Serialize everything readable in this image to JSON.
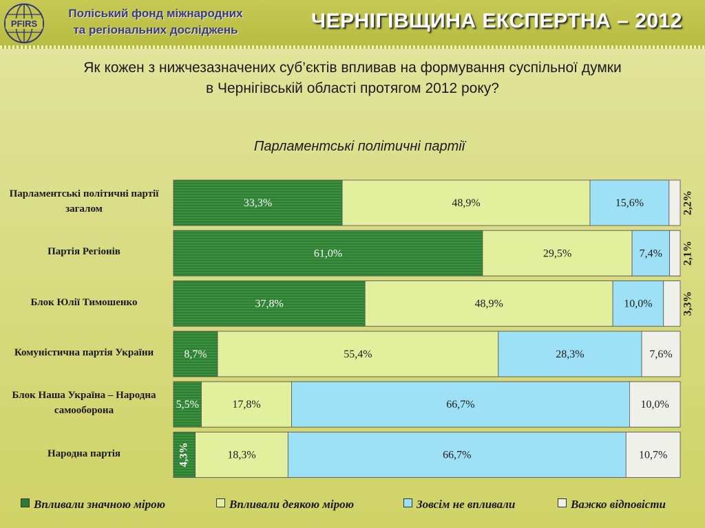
{
  "header": {
    "org_line1": "Поліський фонд міжнародних",
    "org_line2": "та регіональних досліджень",
    "logo_text": "PFIRS",
    "title": "ЧЕРНІГІВЩИНА ЕКСПЕРТНА – 2012"
  },
  "question_line1": "Як кожен з нижчезазначених суб’єктів впливав на формування суспільної думки",
  "question_line2": "в Чернігівській області протягом 2012 року?",
  "chart_data": {
    "type": "bar",
    "orientation": "horizontal",
    "stacked": true,
    "title": "Парламентські політичні партії",
    "categories": [
      "Парламентські політичні партії загалом",
      "Партія Регіонів",
      "Блок Юлії Тимошенко",
      "Комуністична партія України",
      "Блок Наша Україна – Народна самооборона",
      "Народна партія"
    ],
    "series": [
      {
        "name": "Впливали значною мірою",
        "color": "#2e7d32",
        "values": [
          33.3,
          61.0,
          37.8,
          8.7,
          5.5,
          4.3
        ],
        "labels": [
          "33,3%",
          "61,0%",
          "37,8%",
          "8,7%",
          "5,5%",
          "4,3%"
        ]
      },
      {
        "name": "Впливали деякою мірою",
        "color": "#e2ef9c",
        "values": [
          48.9,
          29.5,
          48.9,
          55.4,
          17.8,
          18.3
        ],
        "labels": [
          "48,9%",
          "29,5%",
          "48,9%",
          "55,4%",
          "17,8%",
          "18,3%"
        ]
      },
      {
        "name": "Зовсім не впливали",
        "color": "#9ee0f5",
        "values": [
          15.6,
          7.4,
          10.0,
          28.3,
          66.7,
          66.7
        ],
        "labels": [
          "15,6%",
          "7,4%",
          "10,0%",
          "28,3%",
          "66,7%",
          "66,7%"
        ]
      },
      {
        "name": "Важко відповісти",
        "color": "#f0f0ea",
        "values": [
          2.2,
          2.1,
          3.3,
          7.6,
          10.0,
          10.7
        ],
        "labels": [
          "2,2%",
          "2,1%",
          "3,3%",
          "7,6%",
          "10,0%",
          "10,7%"
        ]
      }
    ],
    "xlim": [
      0,
      100
    ],
    "legend_position": "bottom",
    "grid": false
  }
}
